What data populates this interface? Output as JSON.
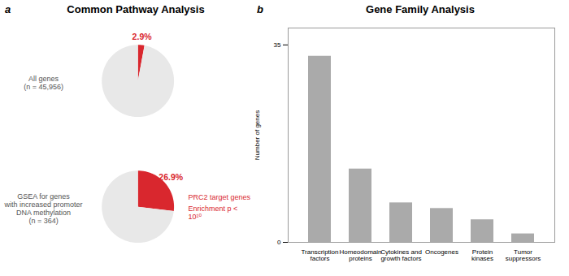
{
  "chart_data": [
    {
      "type": "pie",
      "panel_label": "a",
      "title": "Common Pathway Analysis",
      "colors": [
        "#d9272e",
        "#e8e8e8"
      ],
      "series": [
        {
          "name": "All genes\n(n = 45,956)",
          "values": [
            2.9,
            97.1
          ],
          "value_labels": [
            "2.9%",
            null
          ]
        },
        {
          "name": "GSEA for genes\nwith increased promoter\nDNA methylation\n(n = 364)",
          "values": [
            26.9,
            73.1
          ],
          "value_labels": [
            "26.9%",
            null
          ],
          "annotations": [
            {
              "text": "PRC2 target genes",
              "color": "#d9272e"
            },
            {
              "text": "Enrichment p < 10¹⁰",
              "color": "#d9272e"
            }
          ]
        }
      ]
    },
    {
      "type": "bar",
      "panel_label": "b",
      "title": "Gene Family Analysis",
      "categories": [
        "Transcription\nfactors",
        "Homeodomain\nproteins",
        "Cytokines and\ngrowth factors",
        "Oncogenes",
        "Protein\nkinases",
        "Tumor\nsuppressors"
      ],
      "values": [
        33,
        13,
        7,
        6,
        4,
        1.5
      ],
      "color": "#aaaaaa",
      "ylabel": "Number of genes",
      "ylim": [
        0,
        38
      ],
      "yticks": [
        0,
        35
      ],
      "grid": false
    }
  ]
}
